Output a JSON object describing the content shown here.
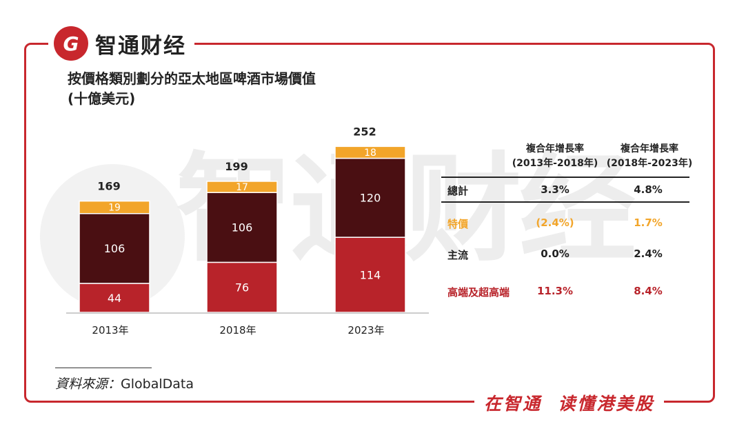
{
  "brand": {
    "logo_glyph": "G",
    "name": "智通财经",
    "slogan": "在智通  读懂港美股",
    "watermark": "智通财经"
  },
  "title_line1": "按價格類別劃分的亞太地區啤酒市場價值",
  "title_line2": "(十億美元)",
  "colors": {
    "accent": "#c8272d",
    "premium": "#b8232a",
    "mainstream": "#4a0f12",
    "discount": "#f2a52a"
  },
  "chart_data": {
    "type": "bar",
    "stacked": true,
    "categories": [
      "2013年",
      "2018年",
      "2023年"
    ],
    "series": [
      {
        "name": "高端及超高端",
        "values": [
          44,
          76,
          114
        ],
        "color": "#b8232a"
      },
      {
        "name": "主流",
        "values": [
          106,
          106,
          120
        ],
        "color": "#4a0f12"
      },
      {
        "name": "特價",
        "values": [
          19,
          17,
          18
        ],
        "color": "#f2a52a"
      }
    ],
    "totals": [
      169,
      199,
      252
    ],
    "ylim": [
      0,
      260
    ]
  },
  "cagr_table": {
    "headers": [
      {
        "line1": "複合年增長率",
        "line2": "(2013年-2018年)"
      },
      {
        "line1": "複合年增長率",
        "line2": "(2018年-2023年)"
      }
    ],
    "rows": [
      {
        "label": "總計",
        "v1": "3.3%",
        "v2": "4.8%"
      },
      {
        "label": "特價",
        "v1": "(2.4%)",
        "v2": "1.7%"
      },
      {
        "label": "主流",
        "v1": "0.0%",
        "v2": "2.4%"
      },
      {
        "label": "高端及超高端",
        "v1": "11.3%",
        "v2": "8.4%"
      }
    ]
  },
  "source": {
    "label": "資料來源：",
    "value": "GlobalData"
  }
}
